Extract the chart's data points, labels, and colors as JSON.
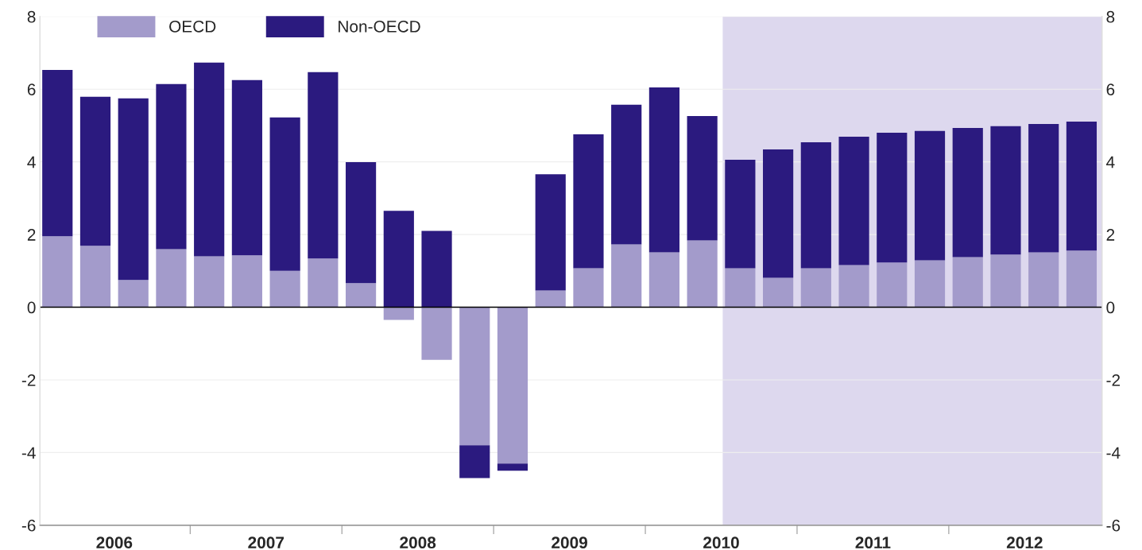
{
  "chart_data": {
    "type": "bar",
    "stacked": true,
    "x": [
      2006.0,
      2006.25,
      2006.5,
      2006.75,
      2007.0,
      2007.25,
      2007.5,
      2007.75,
      2008.0,
      2008.25,
      2008.5,
      2008.75,
      2009.0,
      2009.25,
      2009.5,
      2009.75,
      2010.0,
      2010.25,
      2010.5,
      2010.75,
      2011.0,
      2011.25,
      2011.5,
      2011.75,
      2012.0,
      2012.25,
      2012.5,
      2012.75
    ],
    "series": [
      {
        "name": "OECD",
        "color": "#a39bcb",
        "values": [
          1.95,
          1.69,
          0.75,
          1.6,
          1.4,
          1.43,
          1.0,
          1.34,
          0.66,
          -0.35,
          -1.45,
          -3.8,
          -4.3,
          0.46,
          1.07,
          1.73,
          1.51,
          1.84,
          1.07,
          0.81,
          1.07,
          1.16,
          1.23,
          1.29,
          1.38,
          1.45,
          1.51,
          1.56
        ]
      },
      {
        "name": "Non-OECD",
        "color": "#2b1a7f",
        "values": [
          4.58,
          4.1,
          5.0,
          4.54,
          5.33,
          4.82,
          4.22,
          5.13,
          3.33,
          2.65,
          2.1,
          -0.9,
          -0.2,
          3.2,
          3.69,
          3.84,
          4.54,
          3.42,
          2.99,
          3.53,
          3.47,
          3.53,
          3.57,
          3.56,
          3.55,
          3.53,
          3.53,
          3.55
        ]
      }
    ],
    "xlim": [
      2005.885,
      2012.885
    ],
    "xticks": [
      {
        "value": 2006.375,
        "label": "2006"
      },
      {
        "value": 2007.375,
        "label": "2007"
      },
      {
        "value": 2008.375,
        "label": "2008"
      },
      {
        "value": 2009.375,
        "label": "2009"
      },
      {
        "value": 2010.375,
        "label": "2010"
      },
      {
        "value": 2011.375,
        "label": "2011"
      },
      {
        "value": 2012.375,
        "label": "2012"
      },
      {
        "value": 2006.875,
        "label": null
      },
      {
        "value": 2007.875,
        "label": null
      },
      {
        "value": 2008.875,
        "label": null
      },
      {
        "value": 2009.875,
        "label": null
      },
      {
        "value": 2010.875,
        "label": null
      },
      {
        "value": 2011.875,
        "label": null
      }
    ],
    "ylim": [
      -6,
      8
    ],
    "yticks": [
      -6,
      -4,
      -2,
      0,
      2,
      4,
      6,
      8
    ],
    "y2lim": [
      -6,
      8
    ],
    "y2ticks": [
      -6,
      -4,
      -2,
      0,
      2,
      4,
      6,
      8
    ],
    "bands": [
      {
        "axis": "x",
        "from": 2010.385,
        "to": 2012.885,
        "color": "#ddd8ee"
      }
    ],
    "grid": "y",
    "legend": "top left"
  }
}
